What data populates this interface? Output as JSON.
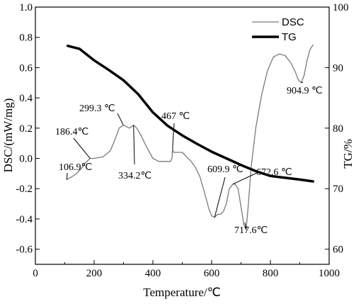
{
  "chart_data": {
    "type": "line",
    "xlabel": "Temperature/℃",
    "ylabel_left": "DSC/(mW/mg)",
    "ylabel_right": "TG/%",
    "xlim": [
      0,
      1000
    ],
    "ylim_left": [
      -0.7,
      1.0
    ],
    "ylim_right": [
      57.5,
      100
    ],
    "x_ticks": [
      "0",
      "200",
      "400",
      "600",
      "800",
      "1000"
    ],
    "y_left_ticks": [
      "1.0",
      "0.8",
      "0.6",
      "0.4",
      "0.2",
      "0.0",
      "-0.2",
      "-0.4",
      "-0.6"
    ],
    "y_right_ticks": [
      "100",
      "90",
      "80",
      "70",
      "60"
    ],
    "legend": {
      "position": "top-right"
    },
    "series": [
      {
        "name": "DSC",
        "axis": "left",
        "color": "#7a7a7a",
        "x": [
          106.9,
          115,
          125,
          140,
          155,
          170,
          186.4,
          200,
          230,
          255,
          270,
          285,
          299.3,
          310,
          320,
          334.2,
          345,
          360,
          380,
          400,
          420,
          440,
          460,
          465,
          467,
          470,
          480,
          500,
          515,
          530,
          545,
          560,
          575,
          590,
          600,
          609.9,
          620,
          630,
          640,
          650,
          660,
          672.6,
          680,
          690,
          700,
          710,
          717.6,
          725,
          735,
          750,
          770,
          790,
          810,
          830,
          850,
          870,
          885,
          895,
          904.9,
          915,
          925,
          935,
          945
        ],
        "values": [
          -0.14,
          -0.13,
          -0.12,
          -0.1,
          -0.07,
          -0.03,
          0.0,
          0.0,
          0.01,
          0.05,
          0.12,
          0.2,
          0.22,
          0.21,
          0.2,
          0.22,
          0.2,
          0.15,
          0.07,
          0.0,
          -0.02,
          -0.02,
          -0.02,
          0.0,
          0.07,
          0.04,
          0.04,
          0.04,
          0.01,
          -0.02,
          -0.06,
          -0.12,
          -0.22,
          -0.33,
          -0.38,
          -0.39,
          -0.37,
          -0.37,
          -0.35,
          -0.3,
          -0.2,
          -0.17,
          -0.17,
          -0.2,
          -0.32,
          -0.44,
          -0.47,
          -0.3,
          -0.05,
          0.2,
          0.42,
          0.58,
          0.67,
          0.69,
          0.68,
          0.63,
          0.57,
          0.52,
          0.5,
          0.55,
          0.65,
          0.72,
          0.75
        ]
      },
      {
        "name": "TG",
        "axis": "right",
        "color": "#000000",
        "x": [
          110,
          150,
          200,
          250,
          300,
          350,
          400,
          450,
          500,
          550,
          600,
          650,
          700,
          750,
          800,
          850,
          900,
          945
        ],
        "values": [
          93.6,
          93.1,
          91.2,
          89.6,
          87.9,
          85.6,
          82.6,
          80.4,
          78.8,
          77.4,
          76.1,
          75.0,
          73.9,
          72.9,
          72.1,
          71.8,
          71.5,
          71.2
        ]
      }
    ],
    "annotations": [
      {
        "text": "106.9℃",
        "x": 106.9,
        "y": -0.14
      },
      {
        "text": "186.4℃",
        "x": 186.4,
        "y": 0.0
      },
      {
        "text": "299.3 ℃",
        "x": 299.3,
        "y": 0.22
      },
      {
        "text": "334.2℃",
        "x": 334.2,
        "y": 0.22
      },
      {
        "text": "467 ℃",
        "x": 467,
        "y": 0.07
      },
      {
        "text": "609.9 ℃",
        "x": 609.9,
        "y": -0.39
      },
      {
        "text": "672.6 ℃",
        "x": 672.6,
        "y": -0.17
      },
      {
        "text": "717.6℃",
        "x": 717.6,
        "y": -0.47
      },
      {
        "text": "904.9 ℃",
        "x": 904.9,
        "y": 0.5
      }
    ]
  }
}
